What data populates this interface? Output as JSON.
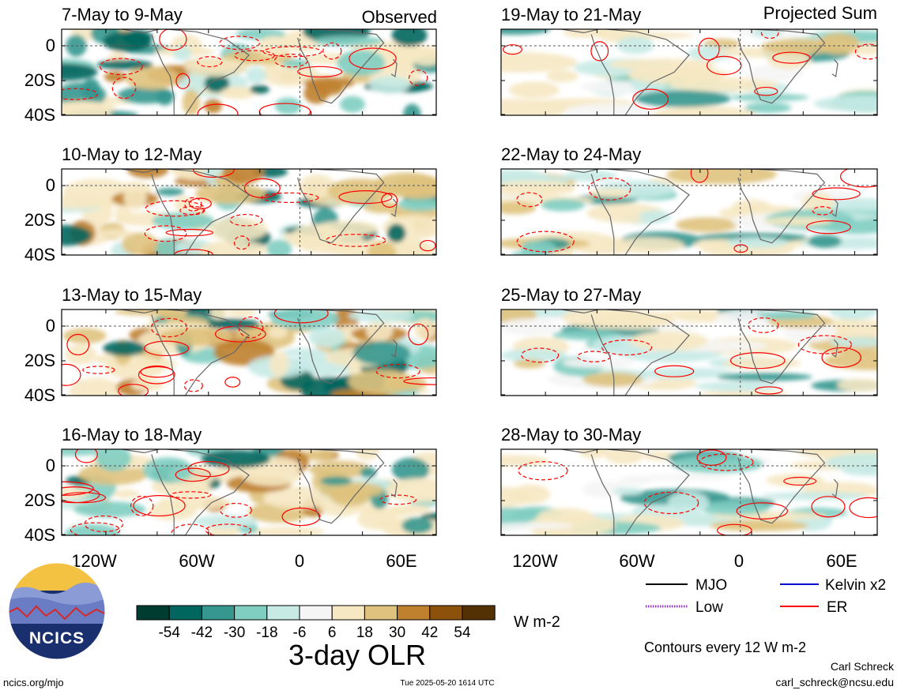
{
  "left_column": {
    "header": "Observed",
    "panels": [
      {
        "title": "7-May to 9-May"
      },
      {
        "title": "10-May to 12-May"
      },
      {
        "title": "13-May to 15-May"
      },
      {
        "title": "16-May to 18-May"
      }
    ]
  },
  "right_column": {
    "header": "Projected Sum",
    "panels": [
      {
        "title": "19-May to 21-May"
      },
      {
        "title": "22-May to 24-May"
      },
      {
        "title": "25-May to 27-May"
      },
      {
        "title": "28-May to 30-May"
      }
    ]
  },
  "lat_labels": [
    "0",
    "20S",
    "40S"
  ],
  "lon_labels": [
    "120W",
    "60W",
    "0",
    "60E"
  ],
  "colorbar": {
    "labels": [
      "-54",
      "-42",
      "-30",
      "-18",
      "-6",
      "6",
      "18",
      "30",
      "42",
      "54"
    ],
    "colors": [
      "#003c30",
      "#01665e",
      "#35978f",
      "#80cdc1",
      "#c7eae5",
      "#f5f5f5",
      "#f6e8c3",
      "#dfc27d",
      "#bf812d",
      "#8c510a",
      "#543005"
    ],
    "units": "W m-2",
    "title": "3-day OLR"
  },
  "legend": {
    "items": [
      {
        "label": "MJO",
        "color": "#000000",
        "style": "solid"
      },
      {
        "label": "Kelvin x2",
        "color": "#0000cc",
        "style": "solid"
      },
      {
        "label": "Low",
        "color": "#9933cc",
        "style": "dotted"
      },
      {
        "label": "ER",
        "color": "#ff0000",
        "style": "solid"
      }
    ],
    "contour_note": "Contours every 12 W m-2"
  },
  "logo": {
    "text": "NCICS"
  },
  "footer": {
    "left": "ncics.org/mjo",
    "center": "Tue 2025-05-20 1614 UTC",
    "author": "Carl Schreck",
    "email": "carl_schreck@ncsu.edu"
  }
}
